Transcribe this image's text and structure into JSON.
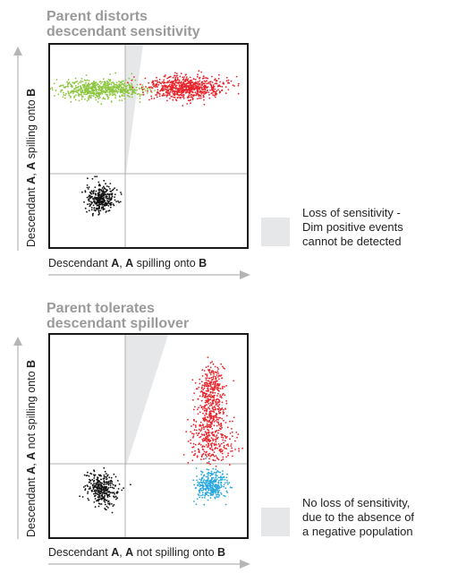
{
  "panels": [
    {
      "title_line1": "Parent distorts",
      "title_line2": "descendant sensitivity",
      "xlabel": {
        "part1": "Descendant ",
        "bold1": "A",
        "part2": ", ",
        "bold2": "A",
        "part3": " spilling onto ",
        "bold3": "B"
      },
      "ylabel": {
        "part1": "Descendant ",
        "bold1": "A",
        "part2": ", ",
        "bold2": "A",
        "part3": " spilling onto ",
        "bold3": "B"
      },
      "legend": [
        "Loss of sensitivity -",
        "Dim positive events",
        "cannot be detected"
      ]
    },
    {
      "title_line1": "Parent tolerates",
      "title_line2": "descendant spillover",
      "xlabel": {
        "part1": "Descendant ",
        "bold1": "A",
        "part2": ", ",
        "bold2": "A",
        "part3": " not spilling onto ",
        "bold3": "B"
      },
      "ylabel": {
        "part1": "Descendant ",
        "bold1": "A",
        "part2": ", ",
        "bold2": "A",
        "part3": " not spilling onto ",
        "bold3": "B"
      },
      "legend": [
        "No loss of sensitivity,",
        "due to the absence of",
        "a negative population"
      ]
    }
  ],
  "colors": {
    "title": "#9a9a9a",
    "negative_population": "#111111",
    "green_population": "#8cc63f",
    "red_population": "#e8242b",
    "blue_population": "#29a8e0",
    "loss_region": "#e6e7e8",
    "arrow": "#b5b5b5"
  }
}
